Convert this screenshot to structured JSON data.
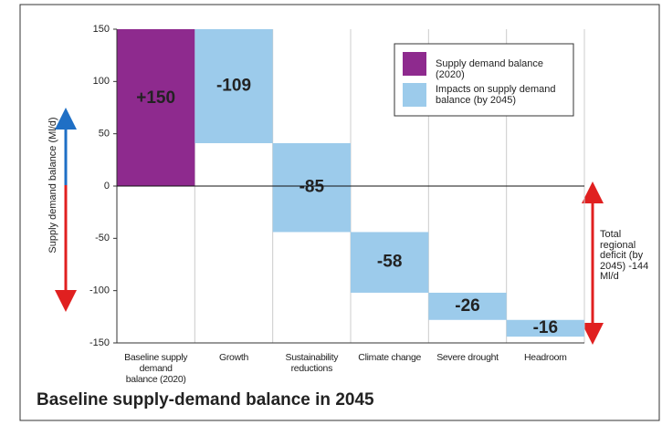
{
  "chart_data": {
    "type": "waterfall",
    "title": "Baseline supply-demand balance in 2045",
    "y_label": "Supply demand balance (Ml/d)",
    "categories": [
      "Baseline supply demand balance (2020)",
      "Growth",
      "Sustainability reductions",
      "Climate change",
      "Severe drought",
      "Headroom"
    ],
    "values": [
      150,
      -109,
      -85,
      -58,
      -26,
      -16
    ],
    "value_labels": [
      "+150",
      "-109",
      "-85",
      "-58",
      "-26",
      "-16"
    ],
    "colors": [
      "#8e2a8e",
      "#9ccbeb",
      "#9ccbeb",
      "#9ccbeb",
      "#9ccbeb",
      "#9ccbeb"
    ],
    "legend": [
      {
        "name": "Supply demand balance (2020)",
        "color": "#8e2a8e"
      },
      {
        "name": "Impacts on supply demand balance (by 2045)",
        "color": "#9ccbeb"
      }
    ],
    "legend_position": "upper right",
    "annotation": "Total regional deficit (by 2045) -144 Ml/d",
    "ylim": [
      -150,
      150
    ],
    "yticks": [
      150,
      100,
      50,
      0,
      -50,
      -100,
      -150
    ],
    "grid": false
  }
}
